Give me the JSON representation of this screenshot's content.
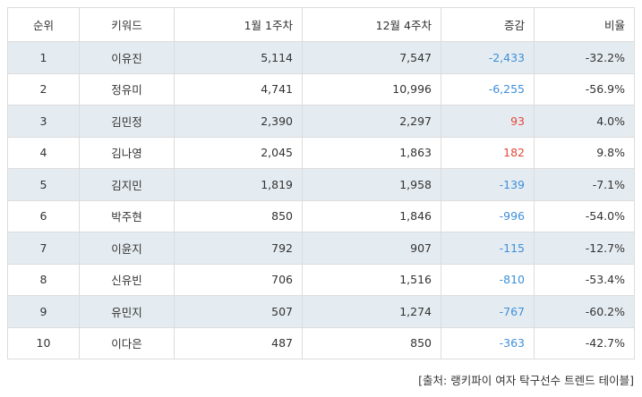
{
  "headers": {
    "rank": "순위",
    "keyword": "키워드",
    "week_jan1": "1월 1주차",
    "week_dec4": "12월 4주차",
    "change": "증감",
    "ratio": "비율"
  },
  "rows": [
    {
      "rank": "1",
      "keyword": "이유진",
      "jan1": "5,114",
      "dec4": "7,547",
      "change": "-2,433",
      "ratio": "-32.2%"
    },
    {
      "rank": "2",
      "keyword": "정유미",
      "jan1": "4,741",
      "dec4": "10,996",
      "change": "-6,255",
      "ratio": "-56.9%"
    },
    {
      "rank": "3",
      "keyword": "김민정",
      "jan1": "2,390",
      "dec4": "2,297",
      "change": "93",
      "ratio": "4.0%"
    },
    {
      "rank": "4",
      "keyword": "김나영",
      "jan1": "2,045",
      "dec4": "1,863",
      "change": "182",
      "ratio": "9.8%"
    },
    {
      "rank": "5",
      "keyword": "김지민",
      "jan1": "1,819",
      "dec4": "1,958",
      "change": "-139",
      "ratio": "-7.1%"
    },
    {
      "rank": "6",
      "keyword": "박주현",
      "jan1": "850",
      "dec4": "1,846",
      "change": "-996",
      "ratio": "-54.0%"
    },
    {
      "rank": "7",
      "keyword": "이윤지",
      "jan1": "792",
      "dec4": "907",
      "change": "-115",
      "ratio": "-12.7%"
    },
    {
      "rank": "8",
      "keyword": "신유빈",
      "jan1": "706",
      "dec4": "1,516",
      "change": "-810",
      "ratio": "-53.4%"
    },
    {
      "rank": "9",
      "keyword": "유민지",
      "jan1": "507",
      "dec4": "1,274",
      "change": "-767",
      "ratio": "-60.2%"
    },
    {
      "rank": "10",
      "keyword": "이다은",
      "jan1": "487",
      "dec4": "850",
      "change": "-363",
      "ratio": "-42.7%"
    }
  ],
  "colors": {
    "negative_change": "#3d8fd8",
    "positive_change": "#e3473a",
    "striped_row": "#e5ecf1",
    "border": "#dcdcdc"
  },
  "source": "[출처: 랭키파이 여자 탁구선수 트렌드 테이블]"
}
